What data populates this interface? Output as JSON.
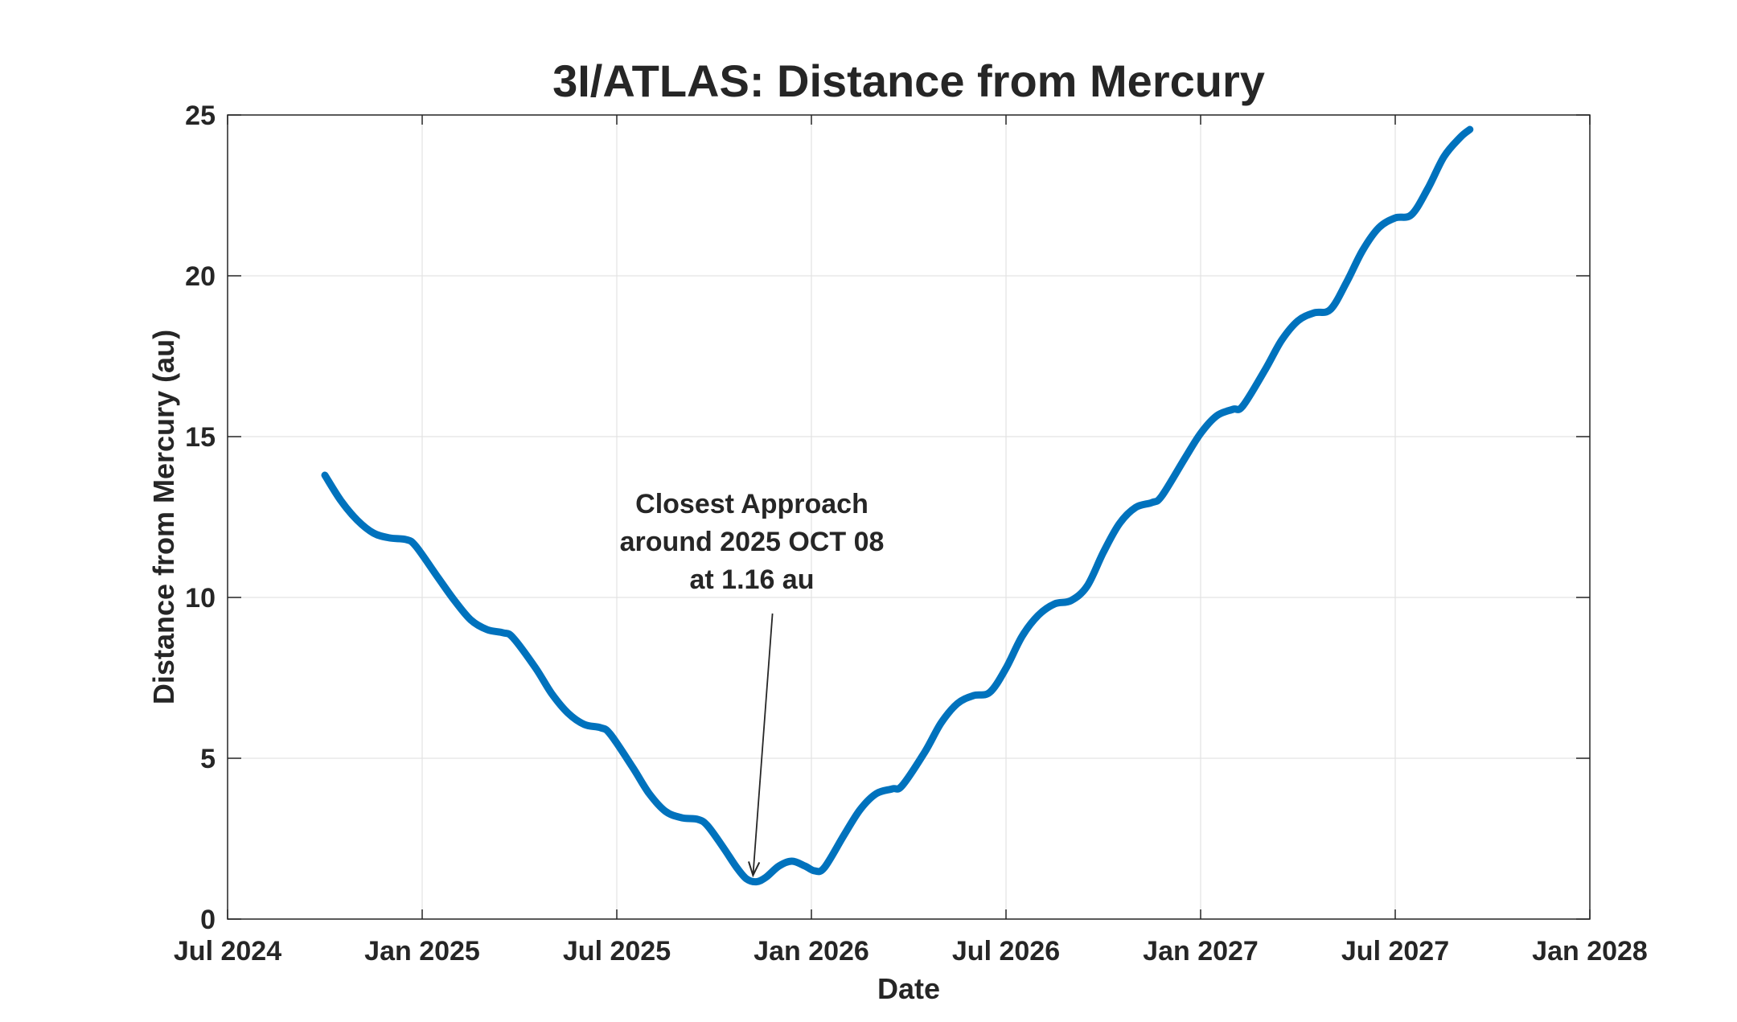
{
  "chart_data": {
    "type": "line",
    "title": "3I/ATLAS: Distance from Mercury",
    "xlabel": "Date",
    "ylabel": "Distance from Mercury (au)",
    "x_ticks": [
      {
        "label": "Jul 2024",
        "value": 0
      },
      {
        "label": "Jan 2025",
        "value": 6
      },
      {
        "label": "Jul 2025",
        "value": 12
      },
      {
        "label": "Jan 2026",
        "value": 18
      },
      {
        "label": "Jul 2026",
        "value": 24
      },
      {
        "label": "Jan 2027",
        "value": 30
      },
      {
        "label": "Jul 2027",
        "value": 36
      },
      {
        "label": "Jan 2028",
        "value": 42
      }
    ],
    "x_unit": "months since Jul 2024",
    "xlim": [
      0,
      42
    ],
    "ylim": [
      0,
      25
    ],
    "y_ticks": [
      0,
      5,
      10,
      15,
      20,
      25
    ],
    "grid": true,
    "color": "#0072BD",
    "series": [
      {
        "name": "Distance from Mercury",
        "points": [
          [
            3.0,
            13.8
          ],
          [
            3.5,
            13.0
          ],
          [
            4.0,
            12.4
          ],
          [
            4.5,
            12.0
          ],
          [
            5.0,
            11.85
          ],
          [
            5.5,
            11.8
          ],
          [
            5.8,
            11.6
          ],
          [
            6.5,
            10.6
          ],
          [
            7.0,
            9.9
          ],
          [
            7.5,
            9.3
          ],
          [
            8.0,
            9.0
          ],
          [
            8.5,
            8.9
          ],
          [
            8.8,
            8.75
          ],
          [
            9.5,
            7.8
          ],
          [
            10.0,
            7.0
          ],
          [
            10.5,
            6.4
          ],
          [
            11.0,
            6.05
          ],
          [
            11.5,
            5.95
          ],
          [
            11.8,
            5.75
          ],
          [
            12.5,
            4.7
          ],
          [
            13.0,
            3.9
          ],
          [
            13.5,
            3.35
          ],
          [
            14.0,
            3.15
          ],
          [
            14.5,
            3.1
          ],
          [
            14.8,
            2.9
          ],
          [
            15.3,
            2.2
          ],
          [
            15.7,
            1.6
          ],
          [
            16.0,
            1.25
          ],
          [
            16.3,
            1.16
          ],
          [
            16.6,
            1.3
          ],
          [
            17.0,
            1.65
          ],
          [
            17.4,
            1.8
          ],
          [
            17.8,
            1.65
          ],
          [
            18.1,
            1.5
          ],
          [
            18.4,
            1.6
          ],
          [
            19.0,
            2.6
          ],
          [
            19.5,
            3.4
          ],
          [
            20.0,
            3.9
          ],
          [
            20.5,
            4.05
          ],
          [
            20.8,
            4.15
          ],
          [
            21.5,
            5.2
          ],
          [
            22.0,
            6.1
          ],
          [
            22.5,
            6.7
          ],
          [
            23.0,
            6.95
          ],
          [
            23.5,
            7.05
          ],
          [
            24.0,
            7.8
          ],
          [
            24.5,
            8.8
          ],
          [
            25.0,
            9.45
          ],
          [
            25.5,
            9.8
          ],
          [
            26.0,
            9.9
          ],
          [
            26.5,
            10.35
          ],
          [
            27.0,
            11.4
          ],
          [
            27.5,
            12.3
          ],
          [
            28.0,
            12.8
          ],
          [
            28.5,
            12.95
          ],
          [
            28.8,
            13.15
          ],
          [
            29.5,
            14.3
          ],
          [
            30.0,
            15.1
          ],
          [
            30.5,
            15.65
          ],
          [
            31.0,
            15.85
          ],
          [
            31.3,
            15.95
          ],
          [
            32.0,
            17.1
          ],
          [
            32.5,
            18.0
          ],
          [
            33.0,
            18.6
          ],
          [
            33.5,
            18.85
          ],
          [
            34.0,
            18.95
          ],
          [
            34.5,
            19.8
          ],
          [
            35.0,
            20.8
          ],
          [
            35.5,
            21.5
          ],
          [
            36.0,
            21.8
          ],
          [
            36.5,
            21.9
          ],
          [
            37.0,
            22.7
          ],
          [
            37.5,
            23.7
          ],
          [
            38.0,
            24.3
          ],
          [
            38.3,
            24.55
          ]
        ]
      }
    ],
    "annotation": {
      "lines": [
        "Closest Approach",
        "around 2025 OCT 08",
        "at 1.16 au"
      ],
      "arrow_to": [
        16.2,
        1.16
      ],
      "arrow_from": [
        16.8,
        10.0
      ]
    }
  }
}
